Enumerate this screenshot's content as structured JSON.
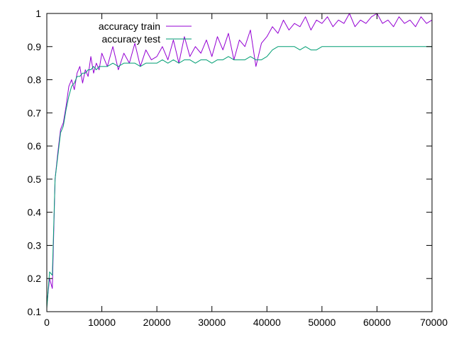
{
  "chart_data": {
    "type": "line",
    "title": "",
    "xlabel": "",
    "ylabel": "",
    "xlim": [
      0,
      70000
    ],
    "ylim": [
      0.1,
      1.0
    ],
    "x_ticks": [
      0,
      10000,
      20000,
      30000,
      40000,
      50000,
      60000,
      70000
    ],
    "y_ticks": [
      0.1,
      0.2,
      0.3,
      0.4,
      0.5,
      0.6,
      0.7,
      0.8,
      0.9,
      1.0
    ],
    "x_tick_labels": [
      "0",
      "10000",
      "20000",
      "30000",
      "40000",
      "50000",
      "60000",
      "70000"
    ],
    "y_tick_labels": [
      "0.1",
      "0.2",
      "0.3",
      "0.4",
      "0.5",
      "0.6",
      "0.7",
      "0.8",
      "0.9",
      "1"
    ],
    "grid": false,
    "legend": "top-left",
    "series": [
      {
        "name": "accuracy train",
        "color": "#9400d3",
        "x": [
          0,
          500,
          1000,
          1500,
          2000,
          2500,
          3000,
          3500,
          4000,
          4500,
          5000,
          5500,
          6000,
          6500,
          7000,
          7500,
          8000,
          8500,
          9000,
          9500,
          10000,
          11000,
          12000,
          13000,
          14000,
          15000,
          16000,
          17000,
          18000,
          19000,
          20000,
          21000,
          22000,
          23000,
          24000,
          25000,
          26000,
          27000,
          28000,
          29000,
          30000,
          31000,
          32000,
          33000,
          34000,
          35000,
          36000,
          37000,
          38000,
          39000,
          40000,
          41000,
          42000,
          43000,
          44000,
          45000,
          46000,
          47000,
          48000,
          49000,
          50000,
          51000,
          52000,
          53000,
          54000,
          55000,
          56000,
          57000,
          58000,
          59000,
          60000,
          61000,
          62000,
          63000,
          64000,
          65000,
          66000,
          67000,
          68000,
          69000,
          70000
        ],
        "y": [
          0.12,
          0.2,
          0.17,
          0.5,
          0.58,
          0.65,
          0.67,
          0.72,
          0.78,
          0.8,
          0.77,
          0.82,
          0.84,
          0.79,
          0.83,
          0.81,
          0.87,
          0.82,
          0.85,
          0.83,
          0.88,
          0.84,
          0.9,
          0.83,
          0.88,
          0.85,
          0.91,
          0.84,
          0.89,
          0.86,
          0.87,
          0.9,
          0.86,
          0.92,
          0.85,
          0.93,
          0.87,
          0.9,
          0.88,
          0.92,
          0.87,
          0.93,
          0.89,
          0.94,
          0.86,
          0.92,
          0.9,
          0.95,
          0.84,
          0.91,
          0.93,
          0.96,
          0.94,
          0.98,
          0.95,
          0.97,
          0.96,
          0.99,
          0.95,
          0.98,
          0.97,
          0.99,
          0.96,
          0.98,
          0.97,
          1.0,
          0.96,
          0.98,
          0.97,
          0.99,
          1.0,
          0.97,
          0.98,
          0.96,
          0.99,
          0.97,
          0.98,
          0.96,
          0.99,
          0.97,
          0.98
        ]
      },
      {
        "name": "accuracy test",
        "color": "#009e73",
        "x": [
          0,
          500,
          1000,
          1500,
          2000,
          2500,
          3000,
          3500,
          4000,
          4500,
          5000,
          5500,
          6000,
          6500,
          7000,
          7500,
          8000,
          8500,
          9000,
          9500,
          10000,
          11000,
          12000,
          13000,
          14000,
          15000,
          16000,
          17000,
          18000,
          19000,
          20000,
          21000,
          22000,
          23000,
          24000,
          25000,
          26000,
          27000,
          28000,
          29000,
          30000,
          31000,
          32000,
          33000,
          34000,
          35000,
          36000,
          37000,
          38000,
          39000,
          40000,
          41000,
          42000,
          43000,
          44000,
          45000,
          46000,
          47000,
          48000,
          49000,
          50000,
          51000,
          52000,
          53000,
          54000,
          55000,
          56000,
          57000,
          58000,
          59000,
          60000,
          61000,
          62000,
          63000,
          64000,
          65000,
          66000,
          67000,
          68000,
          69000,
          70000
        ],
        "y": [
          0.11,
          0.22,
          0.21,
          0.5,
          0.57,
          0.64,
          0.66,
          0.71,
          0.75,
          0.78,
          0.79,
          0.81,
          0.81,
          0.82,
          0.82,
          0.83,
          0.83,
          0.84,
          0.83,
          0.84,
          0.84,
          0.84,
          0.85,
          0.84,
          0.85,
          0.85,
          0.85,
          0.84,
          0.85,
          0.85,
          0.85,
          0.86,
          0.85,
          0.86,
          0.85,
          0.86,
          0.86,
          0.85,
          0.86,
          0.86,
          0.85,
          0.86,
          0.86,
          0.87,
          0.86,
          0.86,
          0.86,
          0.87,
          0.86,
          0.86,
          0.87,
          0.89,
          0.9,
          0.9,
          0.9,
          0.9,
          0.89,
          0.9,
          0.89,
          0.89,
          0.9,
          0.9,
          0.9,
          0.9,
          0.9,
          0.9,
          0.9,
          0.9,
          0.9,
          0.9,
          0.9,
          0.9,
          0.9,
          0.9,
          0.9,
          0.9,
          0.9,
          0.9,
          0.9,
          0.9,
          0.9
        ]
      }
    ]
  }
}
